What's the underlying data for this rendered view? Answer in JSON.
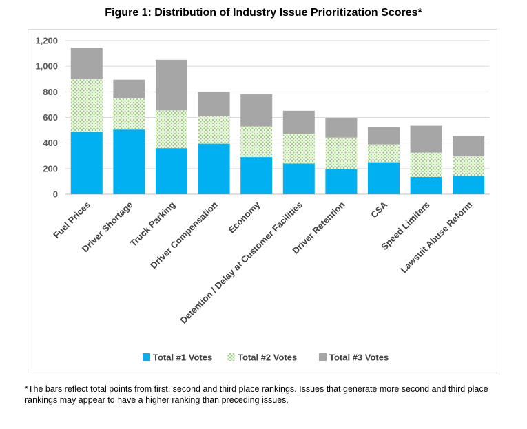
{
  "title": "Figure 1: Distribution of Industry Issue Prioritization Scores*",
  "footnote": "*The bars reflect total points from first, second and third place rankings.  Issues that generate more second and third place rankings may appear to have a higher ranking than preceding issues.",
  "chart_data": {
    "type": "bar",
    "stacked": true,
    "categories": [
      "Fuel Prices",
      "Driver Shortage",
      "Truck Parking",
      "Driver Compensation",
      "Economy",
      "Detention / Delay at Customer Facilities",
      "Driver Retention",
      "CSA",
      "Speed Limiters",
      "Lawsuit Abuse Reform"
    ],
    "series": [
      {
        "name": "Total #1 Votes",
        "color": "#00b0f0",
        "pattern": "solid",
        "values": [
          490,
          505,
          360,
          395,
          290,
          240,
          195,
          250,
          135,
          145
        ]
      },
      {
        "name": "Total #2 Votes",
        "color": "#c6e0b4",
        "pattern": "dotted",
        "values": [
          410,
          245,
          295,
          215,
          240,
          232,
          248,
          140,
          190,
          150
        ]
      },
      {
        "name": "Total #3 Votes",
        "color": "#a6a6a6",
        "pattern": "solid",
        "values": [
          245,
          145,
          395,
          190,
          250,
          180,
          152,
          135,
          210,
          160
        ]
      }
    ],
    "ylim": [
      0,
      1200
    ],
    "yticks": [
      "0",
      "200",
      "400",
      "600",
      "800",
      "1,000",
      "1,200"
    ],
    "ytick_values": [
      0,
      200,
      400,
      600,
      800,
      1000,
      1200
    ],
    "grid": true,
    "legend_position": "bottom"
  }
}
